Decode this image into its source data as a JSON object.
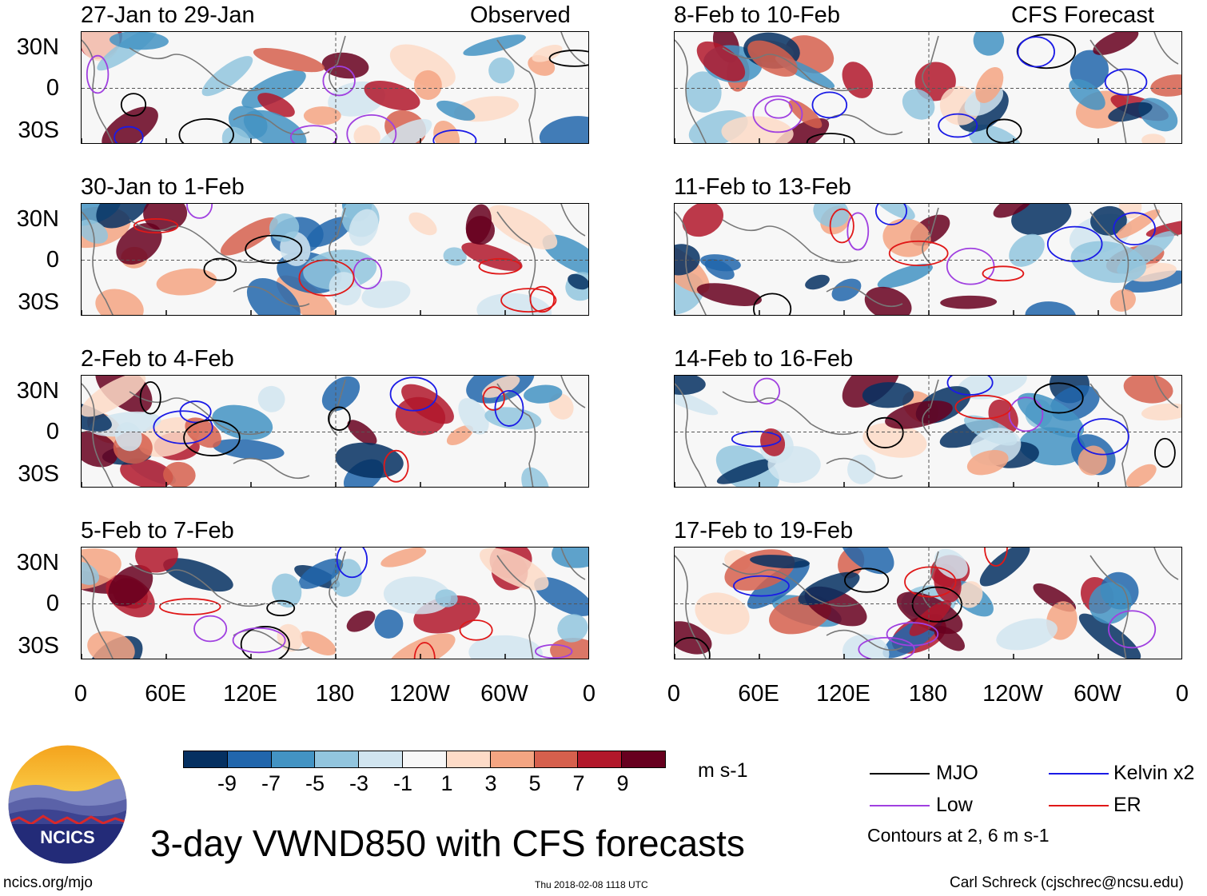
{
  "chart_data": {
    "type": "heatmap",
    "title": "3-day VWND850 with CFS forecasts",
    "variable": "VWND850",
    "units": "m s-1",
    "x_ticks": [
      "0",
      "60E",
      "120E",
      "180",
      "120W",
      "60W",
      "0"
    ],
    "y_ticks": [
      "30N",
      "0",
      "30S"
    ],
    "columns": [
      {
        "header": "Observed",
        "panels": [
          "27-Jan to 29-Jan",
          "30-Jan to 1-Feb",
          "2-Feb to 4-Feb",
          "5-Feb to 7-Feb"
        ]
      },
      {
        "header": "CFS Forecast",
        "panels": [
          "8-Feb to 10-Feb",
          "11-Feb to 13-Feb",
          "14-Feb to 16-Feb",
          "17-Feb to 19-Feb"
        ]
      }
    ],
    "colorbar": {
      "labels": [
        "-9",
        "-7",
        "-5",
        "-3",
        "-1",
        "1",
        "3",
        "5",
        "7",
        "9"
      ],
      "colors": [
        "#053061",
        "#2166ac",
        "#4393c3",
        "#92c5de",
        "#d1e5f0",
        "#f7f7f7",
        "#fddbc7",
        "#f4a582",
        "#d6604d",
        "#b2182b",
        "#67001f"
      ]
    },
    "legend": [
      {
        "label": "MJO",
        "color": "#000000"
      },
      {
        "label": "Kelvin x2",
        "color": "#1a1ae6"
      },
      {
        "label": "Low",
        "color": "#a040e0"
      },
      {
        "label": "ER",
        "color": "#e01818"
      }
    ],
    "contour_note": "Contours at 2, 6 m s-1"
  },
  "branding": {
    "logo_text": "NCICS",
    "site": "ncics.org/mjo",
    "timestamp": "Thu 2018-02-08 1118 UTC",
    "author": "Carl Schreck (cjschrec@ncsu.edu)"
  }
}
